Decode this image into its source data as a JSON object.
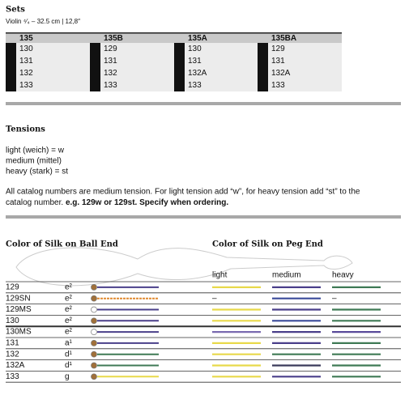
{
  "sets": {
    "title": "Sets",
    "subtitle": "Violin ⁴⁄₄ – 32.5 cm | 12,8″",
    "tables": [
      {
        "header": "135",
        "rows": [
          "130",
          "131",
          "132",
          "133"
        ]
      },
      {
        "header": "135B",
        "rows": [
          "129",
          "131",
          "132",
          "133"
        ]
      },
      {
        "header": "135A",
        "rows": [
          "130",
          "131",
          "132A",
          "133"
        ]
      },
      {
        "header": "135BA",
        "rows": [
          "129",
          "131",
          "132A",
          "133"
        ]
      }
    ]
  },
  "tensions": {
    "title": "Tensions",
    "lines": [
      "light (weich) = w",
      "medium (mittel)",
      "heavy (stark) = st"
    ],
    "note": "All catalog numbers are medium tension. For light tension add “w”, for heavy tension add “st” to the",
    "note_line2": "catalog number.",
    "note_bold": "e.g. 129w or 129st. Specify when ordering."
  },
  "silk": {
    "ball_title": "Color of Silk on Ball End",
    "peg_title": "Color of Silk on Peg End",
    "columns": [
      "light",
      "medium",
      "heavy"
    ],
    "rows": [
      {
        "name": "129",
        "note": "e²",
        "ball": [
          "#a0703a",
          "#4a3f8a"
        ],
        "peg": [
          "#e8d94a",
          "#4a3f8a",
          "#3f7a55"
        ]
      },
      {
        "name": "129SN",
        "note": "e²",
        "ball": [
          "#a0703a",
          "#e08a30"
        ],
        "peg": [
          "–",
          "#3a4a9a",
          "–"
        ]
      },
      {
        "name": "129MS",
        "note": "e²",
        "ball": [
          "#ffffff",
          "#4a3f8a"
        ],
        "peg": [
          "#e8d94a",
          "#4a3f8a",
          "#3f7a55"
        ]
      },
      {
        "name": "130",
        "note": "e²",
        "ball": [
          "#a0703a",
          "#4a3f8a"
        ],
        "peg": [
          "#e8d94a",
          "#3a4a9a",
          "#3f7a55"
        ]
      },
      {
        "name": "130MS",
        "note": "e²",
        "ball": [
          "#ffffff",
          "#4a3f8a"
        ],
        "peg": [
          "#7a6ab0",
          "#4a3f8a",
          "#5a4a9a"
        ]
      },
      {
        "name": "131",
        "note": "a¹",
        "ball": [
          "#a0703a",
          "#4a3f8a"
        ],
        "peg": [
          "#e8d94a",
          "#4a3f8a",
          "#3f7a55"
        ]
      },
      {
        "name": "132",
        "note": "d¹",
        "ball": [
          "#a0703a",
          "#3f7a55"
        ],
        "peg": [
          "#e8d94a",
          "#3f7a55",
          "#3f7a55"
        ]
      },
      {
        "name": "132A",
        "note": "d¹",
        "ball": [
          "#a0703a",
          "#3f7a55"
        ],
        "peg": [
          "#e8d94a",
          "#3a3a5a",
          "#3f7a55"
        ]
      },
      {
        "name": "133",
        "note": "g",
        "ball": [
          "#a0703a",
          "#e8d94a"
        ],
        "peg": [
          "#e8d94a",
          "#4a3f8a",
          "#3f7a55"
        ]
      }
    ]
  }
}
